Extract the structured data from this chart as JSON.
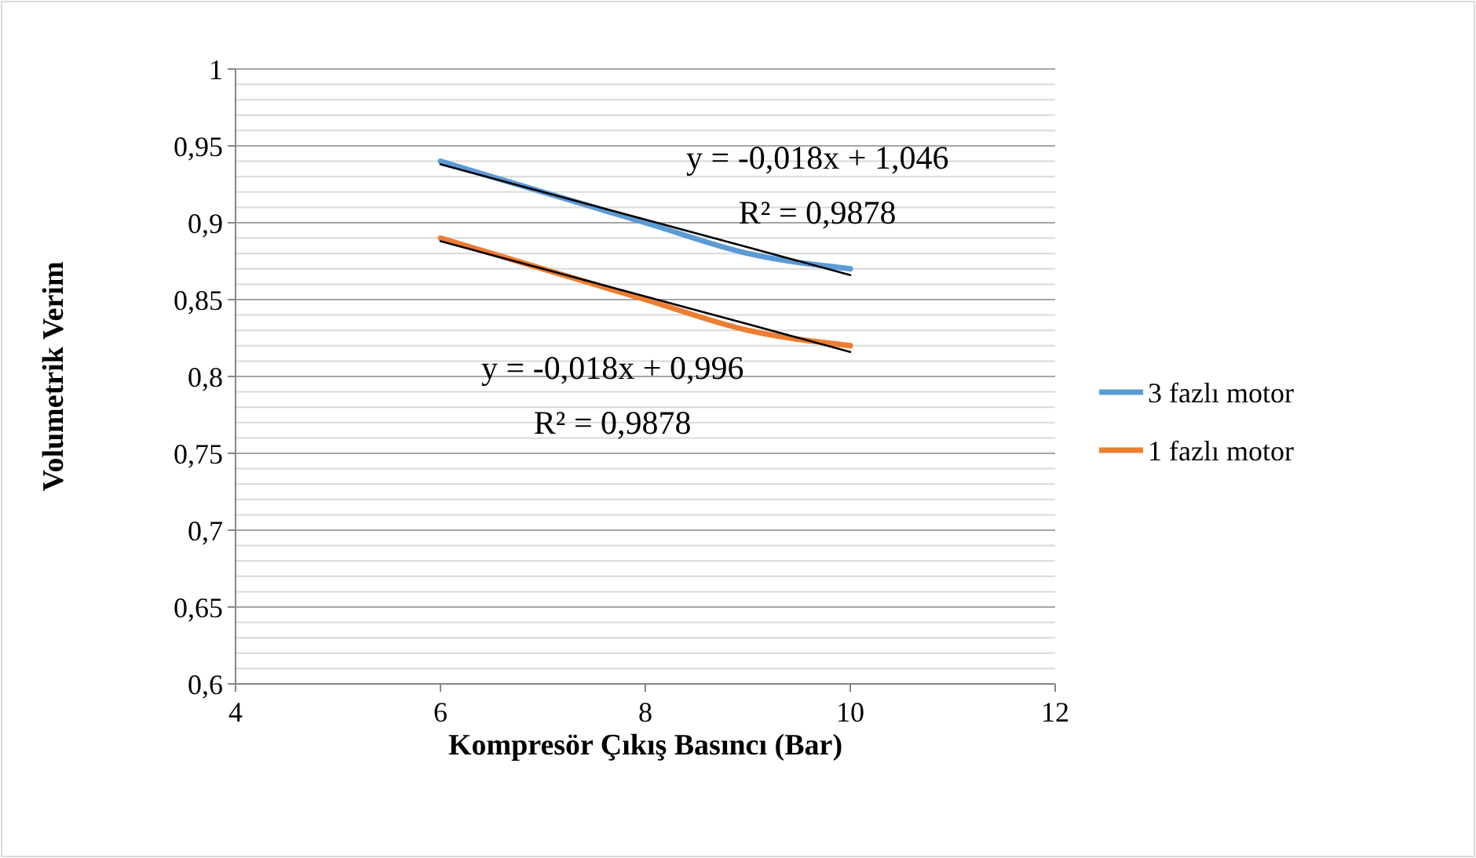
{
  "chart_data": {
    "type": "line",
    "xlabel": "Kompresör Çıkış Basıncı (Bar)",
    "ylabel": "Volumetrik Verim",
    "x": [
      6,
      7,
      8,
      9,
      10
    ],
    "series": [
      {
        "name": "3 fazlı motor",
        "color": "#5b9bd5",
        "values": [
          0.94,
          0.92,
          0.9,
          0.88,
          0.87
        ]
      },
      {
        "name": "1 fazlı motor",
        "color": "#ed7d31",
        "values": [
          0.89,
          0.87,
          0.85,
          0.83,
          0.82
        ]
      },
      {
        "type": "line",
        "color": "#000000",
        "values": [
          0.938,
          0.92,
          0.902,
          0.884,
          0.866
        ]
      },
      {
        "type": "line",
        "color": "#000000",
        "values": [
          0.888,
          0.87,
          0.852,
          0.834,
          0.816
        ]
      }
    ],
    "xlim": [
      4,
      12
    ],
    "xticks": [
      4,
      6,
      8,
      10,
      12
    ],
    "ylim": [
      0.6,
      1
    ],
    "yticks": [
      {
        "value": 0.6,
        "label": "0,6"
      },
      {
        "value": 0.61,
        "label": null
      },
      {
        "value": 0.62,
        "label": null
      },
      {
        "value": 0.63,
        "label": null
      },
      {
        "value": 0.64,
        "label": null
      },
      {
        "value": 0.65,
        "label": "0,65"
      },
      {
        "value": 0.66,
        "label": null
      },
      {
        "value": 0.67,
        "label": null
      },
      {
        "value": 0.68,
        "label": null
      },
      {
        "value": 0.69,
        "label": null
      },
      {
        "value": 0.7,
        "label": "0,7"
      },
      {
        "value": 0.71,
        "label": null
      },
      {
        "value": 0.72,
        "label": null
      },
      {
        "value": 0.73,
        "label": null
      },
      {
        "value": 0.74,
        "label": null
      },
      {
        "value": 0.75,
        "label": "0,75"
      },
      {
        "value": 0.76,
        "label": null
      },
      {
        "value": 0.77,
        "label": null
      },
      {
        "value": 0.78,
        "label": null
      },
      {
        "value": 0.79,
        "label": null
      },
      {
        "value": 0.8,
        "label": "0,8"
      },
      {
        "value": 0.81,
        "label": null
      },
      {
        "value": 0.82,
        "label": null
      },
      {
        "value": 0.83,
        "label": null
      },
      {
        "value": 0.84,
        "label": null
      },
      {
        "value": 0.85,
        "label": "0,85"
      },
      {
        "value": 0.86,
        "label": null
      },
      {
        "value": 0.87,
        "label": null
      },
      {
        "value": 0.88,
        "label": null
      },
      {
        "value": 0.89,
        "label": null
      },
      {
        "value": 0.9,
        "label": "0,9"
      },
      {
        "value": 0.91,
        "label": null
      },
      {
        "value": 0.92,
        "label": null
      },
      {
        "value": 0.93,
        "label": null
      },
      {
        "value": 0.94,
        "label": null
      },
      {
        "value": 0.95,
        "label": "0,95"
      },
      {
        "value": 0.96,
        "label": null
      },
      {
        "value": 0.97,
        "label": null
      },
      {
        "value": 0.98,
        "label": null
      },
      {
        "value": 0.99,
        "label": null
      },
      {
        "value": 1,
        "label": "1"
      }
    ],
    "grid": "y",
    "legend": "right",
    "marker": "none",
    "line_style": "solid",
    "annotations": [
      "y = -0,018x + 1,046\nR² = 0,9878",
      "y = -0,018x + 0,996\nR² = 0,9878"
    ]
  }
}
